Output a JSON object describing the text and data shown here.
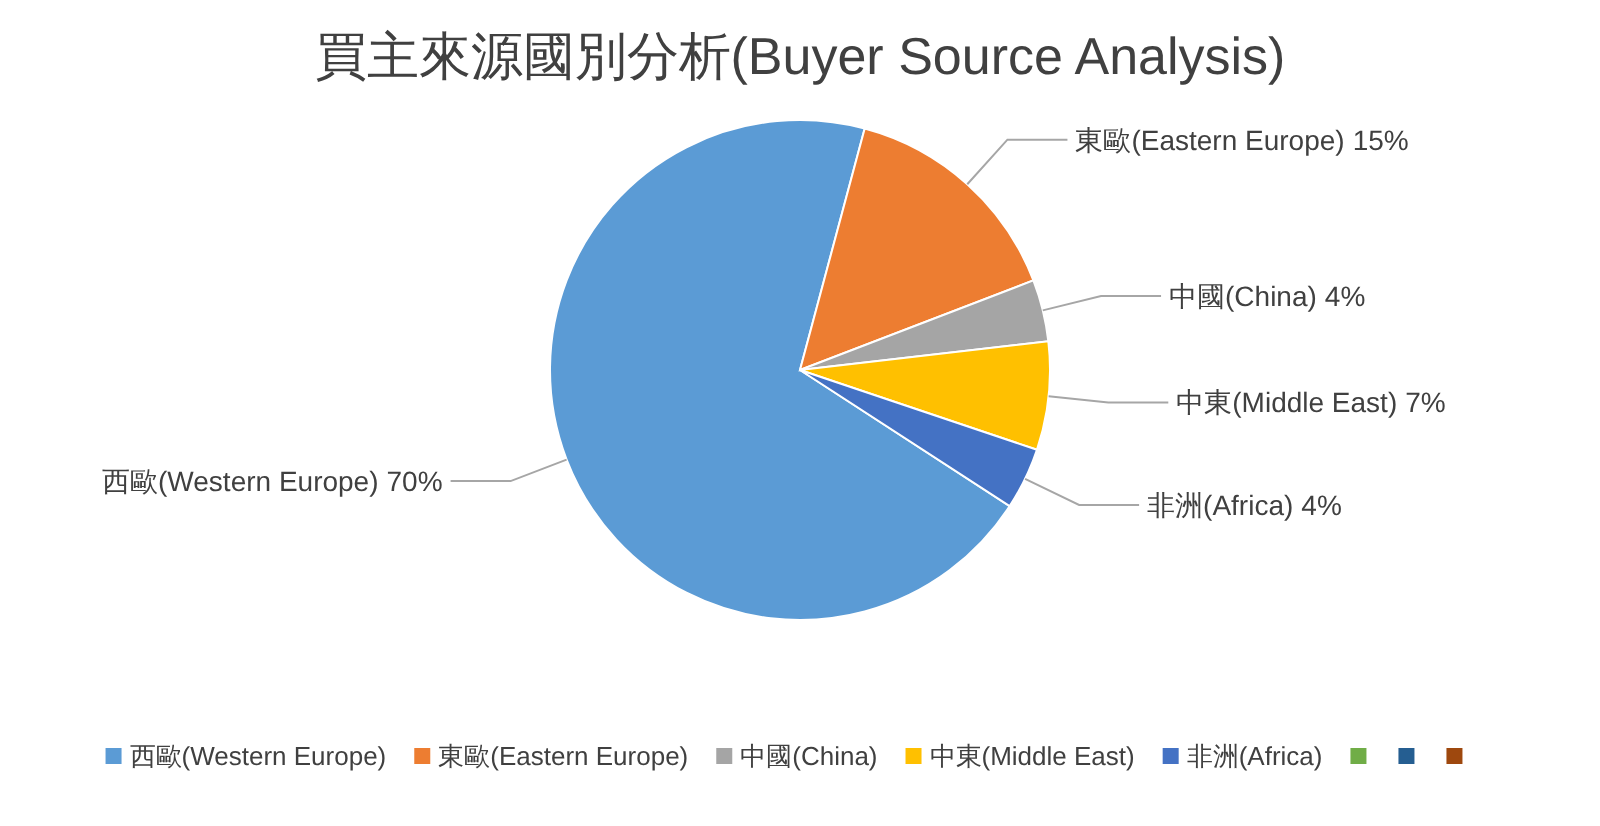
{
  "chart_data": {
    "type": "pie",
    "title": "買主來源國別分析(Buyer Source Analysis)",
    "categories": [
      "西歐(Western Europe)",
      "東歐(Eastern Europe)",
      "中國(China)",
      "中東(Middle East)",
      "非洲(Africa)",
      null,
      null,
      null
    ],
    "values": [
      70,
      15,
      4,
      7,
      4,
      0,
      0,
      0
    ],
    "colors": [
      "#5b9bd5",
      "#ed7d31",
      "#a5a5a5",
      "#ffc000",
      "#4472c4",
      "#70ad47",
      "#255e91",
      "#9e480e"
    ],
    "value_labels": [
      "70%",
      "15%",
      "4%",
      "7%",
      "4%",
      null,
      null,
      null
    ],
    "legend": "bottom"
  }
}
